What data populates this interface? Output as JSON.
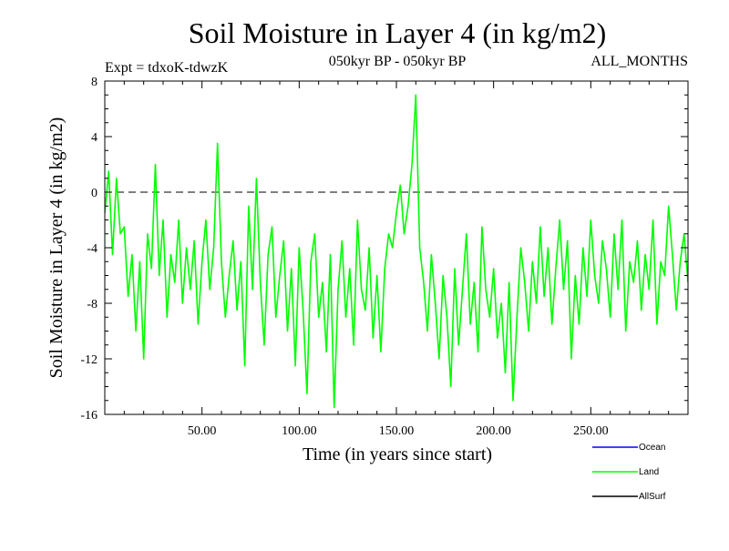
{
  "chart_data": {
    "type": "line",
    "title": "Soil Moisture in Layer 4 (in kg/m2)",
    "subtitle_left": "Expt = tdxoK-tdwzK",
    "subtitle_center": "050kyr BP - 050kyr BP",
    "subtitle_right": "ALL_MONTHS",
    "xlabel": "Time (in years since start)",
    "ylabel": "Soil Moisture in Layer 4 (in kg/m2)",
    "xlim": [
      0,
      300
    ],
    "ylim": [
      -16,
      8
    ],
    "xticks": [
      50,
      100,
      150,
      200,
      250
    ],
    "xtick_labels": [
      "50.00",
      "100.00",
      "150.00",
      "200.00",
      "250.00"
    ],
    "yticks": [
      -16,
      -12,
      -8,
      -4,
      0,
      4,
      8
    ],
    "ytick_labels": [
      "-16",
      "-12",
      "-8",
      "-4",
      "0",
      "4",
      "8"
    ],
    "zero_line": true,
    "grid": false,
    "legend": {
      "placement": "bottom-right",
      "entries": [
        {
          "name": "Ocean",
          "color": "#0000ff"
        },
        {
          "name": "Land",
          "color": "#00ff00"
        },
        {
          "name": "AllSurf",
          "color": "#000000"
        }
      ]
    },
    "series": [
      {
        "name": "Land",
        "color": "#00ff00",
        "x": [
          0,
          2,
          4,
          6,
          8,
          10,
          12,
          14,
          16,
          18,
          20,
          22,
          24,
          26,
          28,
          30,
          32,
          34,
          36,
          38,
          40,
          42,
          44,
          46,
          48,
          50,
          52,
          54,
          56,
          58,
          60,
          62,
          64,
          66,
          68,
          70,
          72,
          74,
          76,
          78,
          80,
          82,
          84,
          86,
          88,
          90,
          92,
          94,
          96,
          98,
          100,
          102,
          104,
          106,
          108,
          110,
          112,
          114,
          116,
          118,
          120,
          122,
          124,
          126,
          128,
          130,
          132,
          134,
          136,
          138,
          140,
          142,
          144,
          146,
          148,
          150,
          152,
          154,
          156,
          158,
          160,
          162,
          164,
          166,
          168,
          170,
          172,
          174,
          176,
          178,
          180,
          182,
          184,
          186,
          188,
          190,
          192,
          194,
          196,
          198,
          200,
          202,
          204,
          206,
          208,
          210,
          212,
          214,
          216,
          218,
          220,
          222,
          224,
          226,
          228,
          230,
          232,
          234,
          236,
          238,
          240,
          242,
          244,
          246,
          248,
          250,
          252,
          254,
          256,
          258,
          260,
          262,
          264,
          266,
          268,
          270,
          272,
          274,
          276,
          278,
          280,
          282,
          284,
          286,
          288,
          290,
          292,
          294,
          296,
          298,
          300
        ],
        "values": [
          -1.5,
          1.5,
          -4.5,
          1.0,
          -3.0,
          -2.5,
          -7.5,
          -4.5,
          -10.0,
          -5.0,
          -12.0,
          -3.0,
          -5.5,
          2.0,
          -6.0,
          -2.0,
          -9.0,
          -4.5,
          -6.5,
          -2.0,
          -8.0,
          -4.0,
          -7.0,
          -3.5,
          -9.5,
          -5.0,
          -2.0,
          -7.0,
          -4.0,
          3.5,
          -5.0,
          -9.0,
          -6.0,
          -3.5,
          -8.5,
          -5.0,
          -12.5,
          -1.0,
          -7.0,
          1.0,
          -6.5,
          -11.0,
          -4.5,
          -2.5,
          -9.0,
          -6.0,
          -3.5,
          -10.0,
          -5.5,
          -12.5,
          -4.0,
          -8.5,
          -14.5,
          -5.0,
          -3.0,
          -9.0,
          -6.5,
          -11.5,
          -4.5,
          -15.5,
          -7.0,
          -3.5,
          -9.0,
          -5.5,
          -11.0,
          -2.0,
          -7.0,
          -8.5,
          -4.0,
          -10.5,
          -6.0,
          -11.5,
          -5.5,
          -3.0,
          -4.0,
          -1.5,
          0.5,
          -3.0,
          -1.0,
          2.0,
          7.0,
          -4.0,
          -6.5,
          -10.0,
          -4.5,
          -8.0,
          -12.0,
          -6.0,
          -9.0,
          -14.0,
          -5.5,
          -11.0,
          -7.0,
          -3.0,
          -9.5,
          -6.5,
          -11.5,
          -2.5,
          -7.0,
          -9.0,
          -5.5,
          -10.5,
          -8.0,
          -13.0,
          -6.5,
          -15.0,
          -9.0,
          -4.0,
          -6.5,
          -10.0,
          -5.0,
          -8.0,
          -2.5,
          -7.5,
          -4.0,
          -9.5,
          -5.5,
          -2.0,
          -7.0,
          -3.5,
          -12.0,
          -6.0,
          -9.5,
          -4.0,
          -7.5,
          -2.0,
          -6.0,
          -8.0,
          -3.5,
          -5.5,
          -9.0,
          -3.0,
          -7.0,
          -2.0,
          -10.0,
          -5.0,
          -6.5,
          -3.5,
          -8.5,
          -4.5,
          -7.0,
          -2.0,
          -9.5,
          -5.0,
          -6.0,
          -1.0,
          -4.5,
          -8.5,
          -5.0,
          -3.0,
          -6.5
        ]
      }
    ]
  }
}
